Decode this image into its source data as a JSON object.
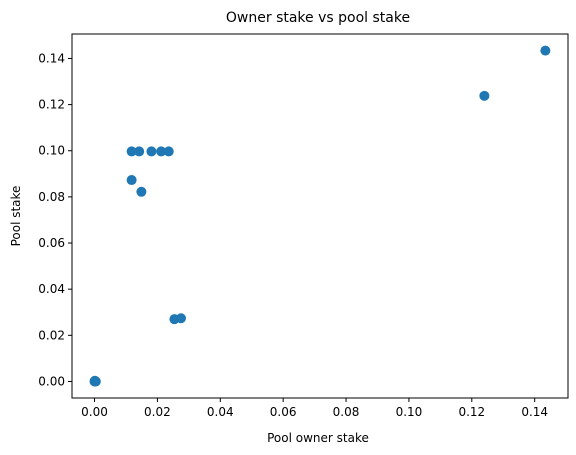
{
  "chart_data": {
    "type": "scatter",
    "title": "Owner stake vs pool stake",
    "xlabel": "Pool owner stake",
    "ylabel": "Pool stake",
    "xlim": [
      -0.00717,
      0.1506
    ],
    "ylim": [
      -0.00717,
      0.1506
    ],
    "xticks": [
      0.0,
      0.02,
      0.04,
      0.06,
      0.08,
      0.1,
      0.12,
      0.14
    ],
    "yticks": [
      0.0,
      0.02,
      0.04,
      0.06,
      0.08,
      0.1,
      0.12,
      0.14
    ],
    "tick_labels_x": [
      "0.00",
      "0.02",
      "0.04",
      "0.06",
      "0.08",
      "0.10",
      "0.12",
      "0.14"
    ],
    "tick_labels_y": [
      "0.00",
      "0.02",
      "0.04",
      "0.06",
      "0.08",
      "0.10",
      "0.12",
      "0.14"
    ],
    "grid": false,
    "marker_color": "#1f77b4",
    "points": [
      {
        "x": 0.0,
        "y": 0.0
      },
      {
        "x": 0.0002,
        "y": 0.0001
      },
      {
        "x": 0.0004,
        "y": 0.0
      },
      {
        "x": 0.0001,
        "y": 0.0003
      },
      {
        "x": 0.0118,
        "y": 0.0997
      },
      {
        "x": 0.0142,
        "y": 0.0997
      },
      {
        "x": 0.0181,
        "y": 0.0997
      },
      {
        "x": 0.0212,
        "y": 0.0997
      },
      {
        "x": 0.0236,
        "y": 0.0997
      },
      {
        "x": 0.0118,
        "y": 0.0873
      },
      {
        "x": 0.0149,
        "y": 0.0822
      },
      {
        "x": 0.0254,
        "y": 0.027
      },
      {
        "x": 0.0275,
        "y": 0.0274
      },
      {
        "x": 0.124,
        "y": 0.1238
      },
      {
        "x": 0.1434,
        "y": 0.1434
      }
    ]
  }
}
